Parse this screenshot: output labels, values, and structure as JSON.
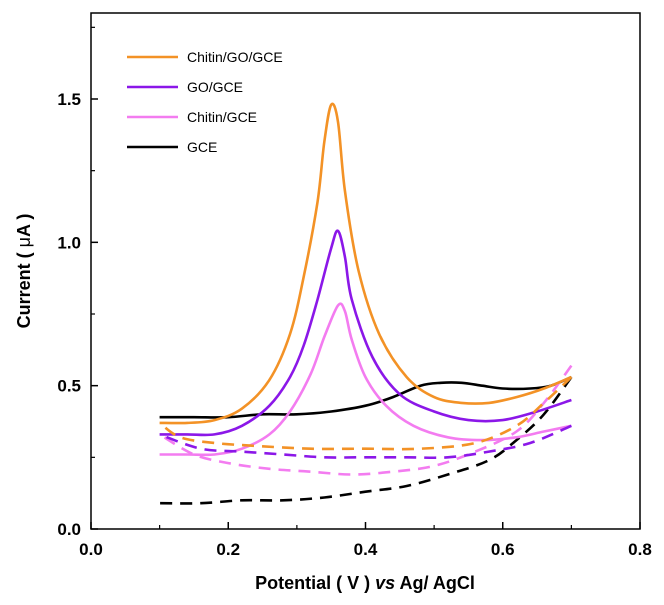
{
  "chart_data": {
    "type": "line",
    "title": "",
    "xlabel_prefix": "Potential ( V ) ",
    "xlabel_italic": "vs",
    "xlabel_suffix": " Ag/ AgCl",
    "ylabel_prefix": "Current ( ",
    "ylabel_greek": "μ",
    "ylabel_suffix": "A )",
    "xlim": [
      0.0,
      0.8
    ],
    "ylim": [
      0.0,
      1.8
    ],
    "xticks": [
      0.0,
      0.2,
      0.4,
      0.6,
      0.8
    ],
    "xtick_labels": [
      "0.0",
      "0.2",
      "0.4",
      "0.6",
      "0.8"
    ],
    "yticks": [
      0.0,
      0.5,
      1.0,
      1.5
    ],
    "ytick_labels": [
      "0.0",
      "0.5",
      "1.0",
      "1.5"
    ],
    "legend_position": "top-left",
    "series": [
      {
        "name": "Chitin/GO/GCE",
        "color": "#f39226",
        "forward": [
          [
            0.1,
            0.37
          ],
          [
            0.14,
            0.37
          ],
          [
            0.18,
            0.38
          ],
          [
            0.22,
            0.42
          ],
          [
            0.26,
            0.52
          ],
          [
            0.29,
            0.68
          ],
          [
            0.31,
            0.88
          ],
          [
            0.33,
            1.14
          ],
          [
            0.34,
            1.35
          ],
          [
            0.35,
            1.48
          ],
          [
            0.36,
            1.42
          ],
          [
            0.37,
            1.18
          ],
          [
            0.39,
            0.9
          ],
          [
            0.42,
            0.68
          ],
          [
            0.46,
            0.53
          ],
          [
            0.5,
            0.46
          ],
          [
            0.54,
            0.44
          ],
          [
            0.58,
            0.44
          ],
          [
            0.62,
            0.46
          ],
          [
            0.66,
            0.49
          ],
          [
            0.7,
            0.53
          ]
        ],
        "reverse": [
          [
            0.7,
            0.53
          ],
          [
            0.66,
            0.44
          ],
          [
            0.62,
            0.36
          ],
          [
            0.56,
            0.3
          ],
          [
            0.48,
            0.28
          ],
          [
            0.4,
            0.28
          ],
          [
            0.32,
            0.28
          ],
          [
            0.24,
            0.29
          ],
          [
            0.18,
            0.3
          ],
          [
            0.13,
            0.32
          ],
          [
            0.1,
            0.37
          ]
        ]
      },
      {
        "name": "GO/GCE",
        "color": "#8b17e8",
        "forward": [
          [
            0.1,
            0.33
          ],
          [
            0.14,
            0.33
          ],
          [
            0.18,
            0.33
          ],
          [
            0.22,
            0.36
          ],
          [
            0.26,
            0.43
          ],
          [
            0.29,
            0.53
          ],
          [
            0.31,
            0.64
          ],
          [
            0.33,
            0.8
          ],
          [
            0.35,
            0.98
          ],
          [
            0.36,
            1.04
          ],
          [
            0.37,
            0.95
          ],
          [
            0.38,
            0.8
          ],
          [
            0.41,
            0.6
          ],
          [
            0.45,
            0.47
          ],
          [
            0.5,
            0.41
          ],
          [
            0.55,
            0.38
          ],
          [
            0.6,
            0.38
          ],
          [
            0.65,
            0.41
          ],
          [
            0.7,
            0.45
          ]
        ],
        "reverse": [
          [
            0.7,
            0.36
          ],
          [
            0.64,
            0.3
          ],
          [
            0.58,
            0.27
          ],
          [
            0.52,
            0.25
          ],
          [
            0.46,
            0.25
          ],
          [
            0.4,
            0.25
          ],
          [
            0.34,
            0.25
          ],
          [
            0.28,
            0.26
          ],
          [
            0.22,
            0.27
          ],
          [
            0.16,
            0.28
          ],
          [
            0.1,
            0.33
          ]
        ]
      },
      {
        "name": "Chitin/GCE",
        "color": "#f37cf0",
        "forward": [
          [
            0.1,
            0.26
          ],
          [
            0.14,
            0.26
          ],
          [
            0.18,
            0.26
          ],
          [
            0.22,
            0.28
          ],
          [
            0.26,
            0.33
          ],
          [
            0.29,
            0.41
          ],
          [
            0.32,
            0.54
          ],
          [
            0.34,
            0.67
          ],
          [
            0.36,
            0.78
          ],
          [
            0.37,
            0.76
          ],
          [
            0.38,
            0.66
          ],
          [
            0.4,
            0.53
          ],
          [
            0.43,
            0.43
          ],
          [
            0.47,
            0.36
          ],
          [
            0.52,
            0.32
          ],
          [
            0.57,
            0.31
          ],
          [
            0.62,
            0.32
          ],
          [
            0.66,
            0.34
          ],
          [
            0.7,
            0.36
          ]
        ],
        "reverse": [
          [
            0.7,
            0.57
          ],
          [
            0.66,
            0.44
          ],
          [
            0.62,
            0.34
          ],
          [
            0.56,
            0.27
          ],
          [
            0.5,
            0.22
          ],
          [
            0.44,
            0.2
          ],
          [
            0.38,
            0.19
          ],
          [
            0.32,
            0.2
          ],
          [
            0.26,
            0.21
          ],
          [
            0.2,
            0.23
          ],
          [
            0.15,
            0.26
          ],
          [
            0.1,
            0.33
          ]
        ]
      },
      {
        "name": "GCE",
        "color": "#000000",
        "forward": [
          [
            0.1,
            0.39
          ],
          [
            0.15,
            0.39
          ],
          [
            0.2,
            0.39
          ],
          [
            0.25,
            0.4
          ],
          [
            0.3,
            0.4
          ],
          [
            0.35,
            0.41
          ],
          [
            0.4,
            0.43
          ],
          [
            0.44,
            0.46
          ],
          [
            0.48,
            0.5
          ],
          [
            0.51,
            0.51
          ],
          [
            0.54,
            0.51
          ],
          [
            0.57,
            0.5
          ],
          [
            0.6,
            0.49
          ],
          [
            0.64,
            0.49
          ],
          [
            0.67,
            0.5
          ],
          [
            0.7,
            0.53
          ]
        ],
        "reverse": [
          [
            0.7,
            0.53
          ],
          [
            0.66,
            0.4
          ],
          [
            0.62,
            0.31
          ],
          [
            0.58,
            0.24
          ],
          [
            0.52,
            0.19
          ],
          [
            0.46,
            0.15
          ],
          [
            0.4,
            0.13
          ],
          [
            0.34,
            0.11
          ],
          [
            0.28,
            0.1
          ],
          [
            0.22,
            0.1
          ],
          [
            0.16,
            0.09
          ],
          [
            0.1,
            0.09
          ]
        ]
      }
    ]
  }
}
